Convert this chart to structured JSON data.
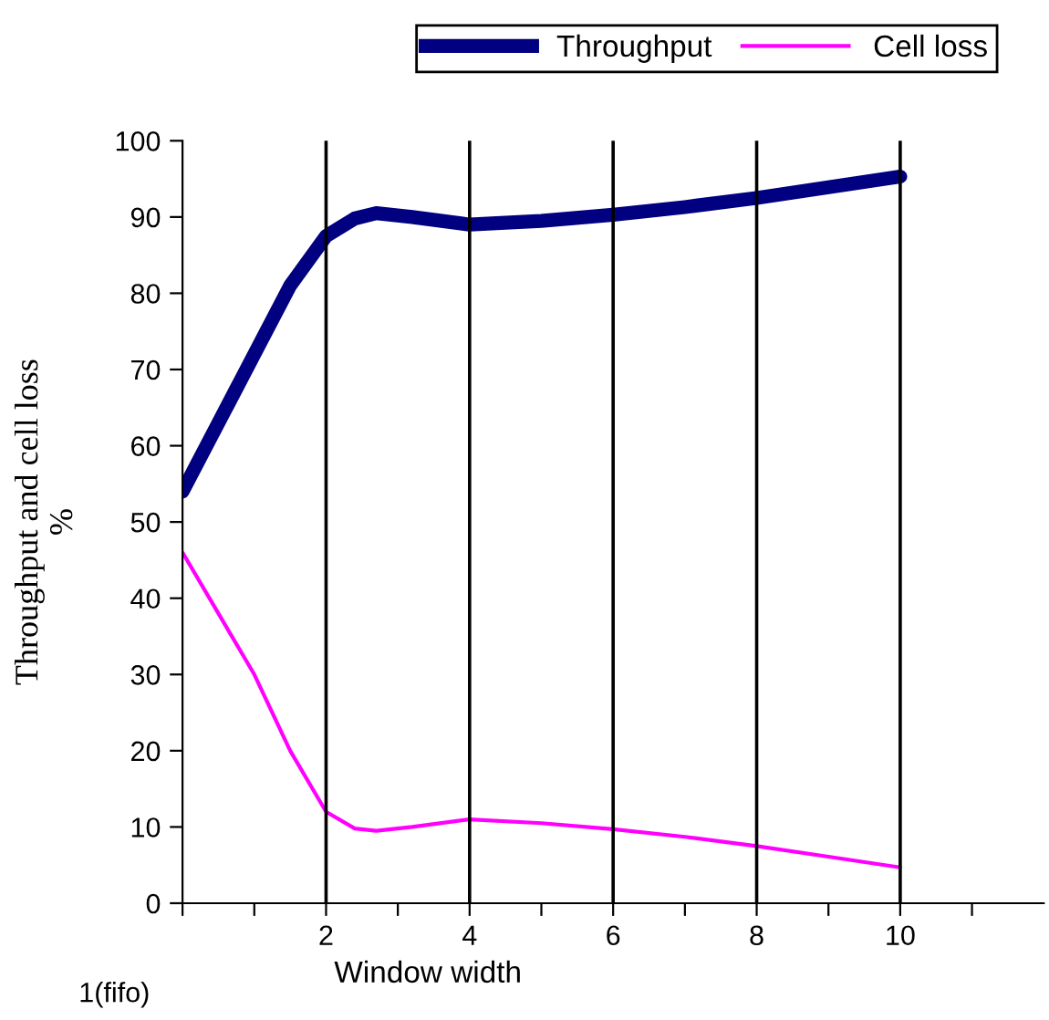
{
  "chart_data": {
    "type": "line",
    "xlabel": "Window width",
    "ylabel": "Throughput and cell loss\n%",
    "xlim": [
      0,
      12
    ],
    "ylim": [
      0,
      100
    ],
    "annotations": [
      "1(fifo)"
    ],
    "xticks": [
      {
        "value": 0,
        "label": null
      },
      {
        "value": 1,
        "label": null
      },
      2,
      {
        "value": 3,
        "label": null
      },
      4,
      {
        "value": 5,
        "label": null
      },
      6,
      {
        "value": 7,
        "label": null
      },
      8,
      {
        "value": 9,
        "label": null
      },
      10,
      {
        "value": 11,
        "label": null
      }
    ],
    "yticks": [
      0,
      10,
      20,
      30,
      40,
      50,
      60,
      70,
      80,
      90,
      100
    ],
    "grid": "x",
    "legend": "top right",
    "marker": "none",
    "line_style": "solid",
    "x": [
      0,
      0.5,
      1,
      1.5,
      2,
      2.4,
      2.7,
      3.2,
      4,
      5,
      6,
      7,
      8,
      9,
      10
    ],
    "series": [
      {
        "name": "Throughput",
        "color": "#000080",
        "values": [
          54,
          63,
          72,
          81,
          87.5,
          89.8,
          90.5,
          90,
          89,
          89.5,
          90.3,
          91.3,
          92.5,
          93.9,
          95.3
        ]
      },
      {
        "name": "Cell loss",
        "color": "#ff00ff",
        "values": [
          46,
          38,
          30,
          20,
          12,
          9.8,
          9.5,
          10,
          11,
          10.5,
          9.7,
          8.7,
          7.5,
          6.1,
          4.7
        ]
      }
    ]
  }
}
